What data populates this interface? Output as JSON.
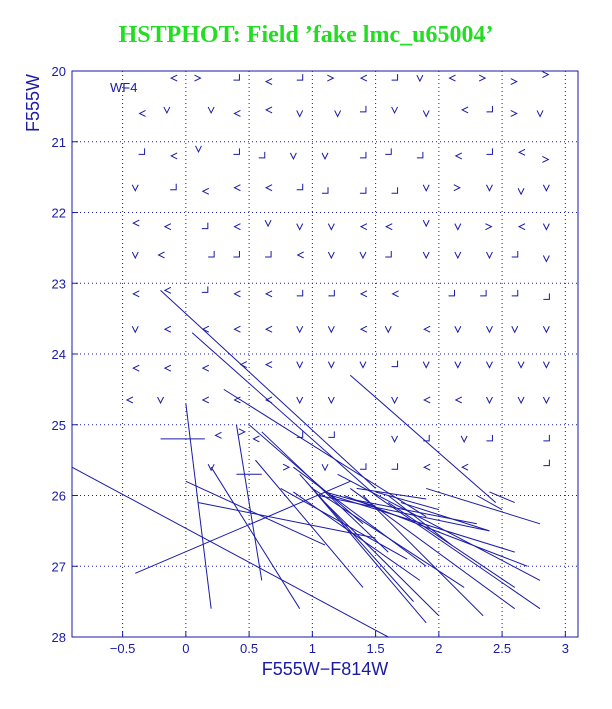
{
  "chart_data": {
    "type": "scatter",
    "title": "HSTPHOT: Field ’fake lmc_u65004’",
    "panel_label": "WF4",
    "xlabel": "F555W−F814W",
    "ylabel": "F555W",
    "xlim": [
      -0.9,
      3.1
    ],
    "ylim": [
      28,
      20
    ],
    "x_ticks": [
      -0.5,
      0,
      0.5,
      1,
      1.5,
      2,
      2.5,
      3
    ],
    "x_tick_labels": [
      "−0.5",
      "0",
      "0.5",
      "1",
      "1.5",
      "2",
      "2.5",
      "3"
    ],
    "y_ticks": [
      20,
      21,
      22,
      23,
      24,
      25,
      26,
      27,
      28
    ],
    "y_tick_labels": [
      "20",
      "21",
      "22",
      "23",
      "24",
      "25",
      "26",
      "27",
      "28"
    ],
    "grid": true,
    "color": "#1a1aa6",
    "marker": "chevron",
    "markers": [
      {
        "x": -0.1,
        "y": 20.1,
        "d": "L"
      },
      {
        "x": 0.1,
        "y": 20.1,
        "d": "R"
      },
      {
        "x": 0.4,
        "y": 20.1,
        "d": "DR"
      },
      {
        "x": 0.65,
        "y": 20.15,
        "d": "L"
      },
      {
        "x": 0.9,
        "y": 20.1,
        "d": "DR"
      },
      {
        "x": 1.15,
        "y": 20.1,
        "d": "R"
      },
      {
        "x": 1.4,
        "y": 20.1,
        "d": "L"
      },
      {
        "x": 1.65,
        "y": 20.1,
        "d": "DR"
      },
      {
        "x": 1.85,
        "y": 20.1,
        "d": "V"
      },
      {
        "x": 2.1,
        "y": 20.1,
        "d": "L"
      },
      {
        "x": 2.35,
        "y": 20.1,
        "d": "R"
      },
      {
        "x": 2.6,
        "y": 20.15,
        "d": "R"
      },
      {
        "x": 2.85,
        "y": 20.05,
        "d": "R"
      },
      {
        "x": -0.35,
        "y": 20.6,
        "d": "L"
      },
      {
        "x": -0.15,
        "y": 20.55,
        "d": "V"
      },
      {
        "x": 0.2,
        "y": 20.55,
        "d": "V"
      },
      {
        "x": 0.4,
        "y": 20.6,
        "d": "L"
      },
      {
        "x": 0.65,
        "y": 20.55,
        "d": "L"
      },
      {
        "x": 0.9,
        "y": 20.6,
        "d": "V"
      },
      {
        "x": 1.2,
        "y": 20.6,
        "d": "V"
      },
      {
        "x": 1.4,
        "y": 20.55,
        "d": "DR"
      },
      {
        "x": 1.65,
        "y": 20.55,
        "d": "V"
      },
      {
        "x": 1.9,
        "y": 20.6,
        "d": "V"
      },
      {
        "x": 2.2,
        "y": 20.55,
        "d": "L"
      },
      {
        "x": 2.4,
        "y": 20.55,
        "d": "DR"
      },
      {
        "x": 2.6,
        "y": 20.6,
        "d": "R"
      },
      {
        "x": 2.8,
        "y": 20.6,
        "d": "V"
      },
      {
        "x": -0.35,
        "y": 21.15,
        "d": "DR"
      },
      {
        "x": -0.1,
        "y": 21.2,
        "d": "L"
      },
      {
        "x": 0.1,
        "y": 21.1,
        "d": "V"
      },
      {
        "x": 0.4,
        "y": 21.15,
        "d": "DR"
      },
      {
        "x": 0.6,
        "y": 21.2,
        "d": "DR"
      },
      {
        "x": 0.85,
        "y": 21.2,
        "d": "V"
      },
      {
        "x": 1.1,
        "y": 21.2,
        "d": "V"
      },
      {
        "x": 1.4,
        "y": 21.2,
        "d": "DR"
      },
      {
        "x": 1.6,
        "y": 21.15,
        "d": "DR"
      },
      {
        "x": 1.85,
        "y": 21.2,
        "d": "DR"
      },
      {
        "x": 2.15,
        "y": 21.2,
        "d": "L"
      },
      {
        "x": 2.4,
        "y": 21.15,
        "d": "DR"
      },
      {
        "x": 2.65,
        "y": 21.15,
        "d": "L"
      },
      {
        "x": 2.85,
        "y": 21.25,
        "d": "R"
      },
      {
        "x": -0.4,
        "y": 21.65,
        "d": "V"
      },
      {
        "x": -0.1,
        "y": 21.65,
        "d": "DR"
      },
      {
        "x": 0.15,
        "y": 21.7,
        "d": "L"
      },
      {
        "x": 0.4,
        "y": 21.65,
        "d": "L"
      },
      {
        "x": 0.65,
        "y": 21.65,
        "d": "L"
      },
      {
        "x": 0.9,
        "y": 21.65,
        "d": "DR"
      },
      {
        "x": 1.1,
        "y": 21.7,
        "d": "DR"
      },
      {
        "x": 1.4,
        "y": 21.7,
        "d": "DR"
      },
      {
        "x": 1.65,
        "y": 21.7,
        "d": "DR"
      },
      {
        "x": 1.9,
        "y": 21.65,
        "d": "V"
      },
      {
        "x": 2.15,
        "y": 21.65,
        "d": "R"
      },
      {
        "x": 2.4,
        "y": 21.65,
        "d": "V"
      },
      {
        "x": 2.65,
        "y": 21.7,
        "d": "V"
      },
      {
        "x": 2.85,
        "y": 21.65,
        "d": "V"
      },
      {
        "x": -0.4,
        "y": 22.15,
        "d": "L"
      },
      {
        "x": -0.15,
        "y": 22.2,
        "d": "L"
      },
      {
        "x": 0.15,
        "y": 22.2,
        "d": "DR"
      },
      {
        "x": 0.4,
        "y": 22.2,
        "d": "L"
      },
      {
        "x": 0.65,
        "y": 22.15,
        "d": "V"
      },
      {
        "x": 0.9,
        "y": 22.2,
        "d": "V"
      },
      {
        "x": 1.15,
        "y": 22.2,
        "d": "V"
      },
      {
        "x": 1.4,
        "y": 22.2,
        "d": "L"
      },
      {
        "x": 1.6,
        "y": 22.2,
        "d": "L"
      },
      {
        "x": 1.9,
        "y": 22.15,
        "d": "V"
      },
      {
        "x": 2.15,
        "y": 22.2,
        "d": "V"
      },
      {
        "x": 2.4,
        "y": 22.2,
        "d": "R"
      },
      {
        "x": 2.65,
        "y": 22.2,
        "d": "L"
      },
      {
        "x": 2.85,
        "y": 22.2,
        "d": "V"
      },
      {
        "x": -0.4,
        "y": 22.6,
        "d": "V"
      },
      {
        "x": -0.2,
        "y": 22.6,
        "d": "L"
      },
      {
        "x": 0.2,
        "y": 22.6,
        "d": "DR"
      },
      {
        "x": 0.4,
        "y": 22.6,
        "d": "DR"
      },
      {
        "x": 0.65,
        "y": 22.6,
        "d": "DR"
      },
      {
        "x": 0.9,
        "y": 22.6,
        "d": "L"
      },
      {
        "x": 1.15,
        "y": 22.6,
        "d": "V"
      },
      {
        "x": 1.4,
        "y": 22.6,
        "d": "V"
      },
      {
        "x": 1.6,
        "y": 22.6,
        "d": "DR"
      },
      {
        "x": 1.9,
        "y": 22.6,
        "d": "V"
      },
      {
        "x": 2.15,
        "y": 22.6,
        "d": "V"
      },
      {
        "x": 2.4,
        "y": 22.6,
        "d": "V"
      },
      {
        "x": 2.6,
        "y": 22.6,
        "d": "DR"
      },
      {
        "x": 2.85,
        "y": 22.65,
        "d": "V"
      },
      {
        "x": -0.4,
        "y": 23.15,
        "d": "L"
      },
      {
        "x": -0.15,
        "y": 23.1,
        "d": "L"
      },
      {
        "x": 0.15,
        "y": 23.1,
        "d": "DR"
      },
      {
        "x": 0.4,
        "y": 23.15,
        "d": "L"
      },
      {
        "x": 0.65,
        "y": 23.15,
        "d": "L"
      },
      {
        "x": 0.9,
        "y": 23.15,
        "d": "DR"
      },
      {
        "x": 1.15,
        "y": 23.15,
        "d": "DR"
      },
      {
        "x": 1.4,
        "y": 23.15,
        "d": "L"
      },
      {
        "x": 1.65,
        "y": 23.15,
        "d": "L"
      },
      {
        "x": 2.1,
        "y": 23.15,
        "d": "DR"
      },
      {
        "x": 2.35,
        "y": 23.15,
        "d": "DR"
      },
      {
        "x": 2.6,
        "y": 23.15,
        "d": "DR"
      },
      {
        "x": 2.85,
        "y": 23.2,
        "d": "DR"
      },
      {
        "x": -0.4,
        "y": 23.65,
        "d": "V"
      },
      {
        "x": -0.15,
        "y": 23.65,
        "d": "L"
      },
      {
        "x": 0.15,
        "y": 23.65,
        "d": "L"
      },
      {
        "x": 0.4,
        "y": 23.65,
        "d": "L"
      },
      {
        "x": 0.65,
        "y": 23.65,
        "d": "L"
      },
      {
        "x": 0.9,
        "y": 23.65,
        "d": "V"
      },
      {
        "x": 1.15,
        "y": 23.65,
        "d": "V"
      },
      {
        "x": 1.4,
        "y": 23.65,
        "d": "L"
      },
      {
        "x": 1.6,
        "y": 23.65,
        "d": "V"
      },
      {
        "x": 1.9,
        "y": 23.65,
        "d": "L"
      },
      {
        "x": 2.15,
        "y": 23.65,
        "d": "V"
      },
      {
        "x": 2.4,
        "y": 23.65,
        "d": "V"
      },
      {
        "x": 2.6,
        "y": 23.65,
        "d": "V"
      },
      {
        "x": 2.85,
        "y": 23.65,
        "d": "V"
      },
      {
        "x": -0.4,
        "y": 24.2,
        "d": "L"
      },
      {
        "x": -0.15,
        "y": 24.2,
        "d": "L"
      },
      {
        "x": 0.15,
        "y": 24.2,
        "d": "L"
      },
      {
        "x": 0.45,
        "y": 24.15,
        "d": "L"
      },
      {
        "x": 0.65,
        "y": 24.15,
        "d": "L"
      },
      {
        "x": 0.9,
        "y": 24.15,
        "d": "V"
      },
      {
        "x": 1.15,
        "y": 24.15,
        "d": "V"
      },
      {
        "x": 1.4,
        "y": 24.15,
        "d": "V"
      },
      {
        "x": 1.65,
        "y": 24.15,
        "d": "DR"
      },
      {
        "x": 1.9,
        "y": 24.15,
        "d": "V"
      },
      {
        "x": 2.15,
        "y": 24.15,
        "d": "V"
      },
      {
        "x": 2.4,
        "y": 24.15,
        "d": "V"
      },
      {
        "x": 2.65,
        "y": 24.15,
        "d": "V"
      },
      {
        "x": 2.85,
        "y": 24.15,
        "d": "V"
      },
      {
        "x": -0.45,
        "y": 24.65,
        "d": "L"
      },
      {
        "x": -0.2,
        "y": 24.65,
        "d": "V"
      },
      {
        "x": 0.15,
        "y": 24.65,
        "d": "L"
      },
      {
        "x": 0.4,
        "y": 24.65,
        "d": "L"
      },
      {
        "x": 0.65,
        "y": 24.65,
        "d": "L"
      },
      {
        "x": 0.9,
        "y": 24.65,
        "d": "V"
      },
      {
        "x": 1.15,
        "y": 24.65,
        "d": "V"
      },
      {
        "x": 1.65,
        "y": 24.65,
        "d": "V"
      },
      {
        "x": 1.9,
        "y": 24.65,
        "d": "L"
      },
      {
        "x": 2.15,
        "y": 24.65,
        "d": "L"
      },
      {
        "x": 2.4,
        "y": 24.65,
        "d": "V"
      },
      {
        "x": 2.65,
        "y": 24.65,
        "d": "V"
      },
      {
        "x": 2.85,
        "y": 24.65,
        "d": "V"
      },
      {
        "x": 0.25,
        "y": 25.15,
        "d": "L"
      },
      {
        "x": 0.45,
        "y": 25.1,
        "d": "R"
      },
      {
        "x": 0.55,
        "y": 25.2,
        "d": "L"
      },
      {
        "x": 0.9,
        "y": 25.15,
        "d": "DR"
      },
      {
        "x": 1.15,
        "y": 25.15,
        "d": "DR"
      },
      {
        "x": 1.65,
        "y": 25.2,
        "d": "V"
      },
      {
        "x": 1.9,
        "y": 25.2,
        "d": "DR"
      },
      {
        "x": 2.2,
        "y": 25.2,
        "d": "V"
      },
      {
        "x": 2.4,
        "y": 25.2,
        "d": "DR"
      },
      {
        "x": 2.85,
        "y": 25.2,
        "d": "DR"
      },
      {
        "x": 0.2,
        "y": 25.6,
        "d": "V"
      },
      {
        "x": 0.8,
        "y": 25.6,
        "d": "R"
      },
      {
        "x": 1.1,
        "y": 25.6,
        "d": "V"
      },
      {
        "x": 1.4,
        "y": 25.6,
        "d": "DR"
      },
      {
        "x": 1.65,
        "y": 25.6,
        "d": "DR"
      },
      {
        "x": 1.9,
        "y": 25.6,
        "d": "L"
      },
      {
        "x": 2.2,
        "y": 25.6,
        "d": "L"
      },
      {
        "x": 2.85,
        "y": 25.55,
        "d": "DR"
      }
    ],
    "vectors": [
      [
        -0.2,
        23.1,
        1.5,
        25.9
      ],
      [
        0.05,
        23.7,
        1.5,
        26.0
      ],
      [
        1.3,
        24.3,
        2.45,
        26.1
      ],
      [
        0.3,
        24.5,
        1.9,
        26.3
      ],
      [
        0.0,
        24.7,
        0.2,
        27.6
      ],
      [
        -0.9,
        25.6,
        1.6,
        28.0
      ],
      [
        0.5,
        25.0,
        1.4,
        26.4
      ],
      [
        0.6,
        25.1,
        1.6,
        26.8
      ],
      [
        0.4,
        25.0,
        0.6,
        27.2
      ],
      [
        -0.2,
        25.2,
        0.15,
        25.2
      ],
      [
        0.4,
        25.7,
        0.6,
        25.7
      ],
      [
        0.0,
        25.8,
        1.1,
        26.7
      ],
      [
        0.2,
        25.6,
        0.9,
        27.6
      ],
      [
        0.55,
        25.5,
        1.4,
        27.3
      ],
      [
        -0.4,
        27.1,
        1.3,
        25.8
      ],
      [
        0.85,
        25.6,
        1.9,
        27.0
      ],
      [
        0.9,
        25.7,
        1.8,
        27.5
      ],
      [
        0.95,
        25.8,
        1.9,
        27.8
      ],
      [
        1.0,
        25.9,
        2.2,
        27.3
      ],
      [
        1.05,
        26.0,
        2.4,
        26.5
      ],
      [
        1.15,
        26.0,
        2.6,
        26.8
      ],
      [
        1.2,
        25.7,
        2.8,
        27.2
      ],
      [
        1.3,
        25.9,
        2.6,
        27.6
      ],
      [
        1.5,
        26.0,
        2.8,
        27.6
      ],
      [
        1.6,
        26.0,
        2.1,
        26.7
      ],
      [
        1.7,
        26.1,
        2.4,
        26.5
      ],
      [
        1.9,
        25.9,
        2.8,
        26.4
      ],
      [
        2.3,
        26.0,
        2.5,
        26.2
      ],
      [
        1.4,
        26.0,
        2.35,
        27.7
      ],
      [
        1.6,
        26.1,
        2.6,
        27.3
      ],
      [
        0.75,
        25.9,
        1.75,
        26.9
      ],
      [
        0.85,
        25.95,
        1.85,
        27.2
      ],
      [
        1.1,
        26.1,
        2.0,
        27.7
      ],
      [
        0.1,
        26.1,
        1.5,
        26.6
      ],
      [
        1.25,
        26.0,
        2.7,
        27.0
      ],
      [
        1.3,
        26.05,
        2.3,
        26.4
      ],
      [
        2.4,
        25.95,
        2.6,
        26.1
      ],
      [
        1.35,
        25.9,
        1.9,
        26.05
      ],
      [
        1.5,
        25.95,
        2.0,
        26.2
      ],
      [
        1.1,
        25.95,
        1.5,
        26.15
      ]
    ]
  }
}
